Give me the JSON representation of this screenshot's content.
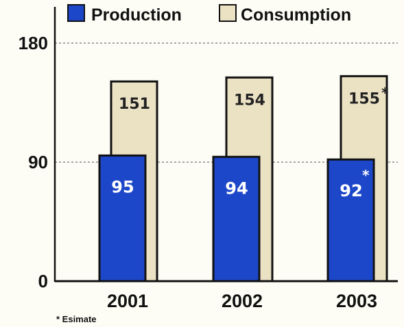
{
  "colors": {
    "production": "#1d47c9",
    "consumption": "#ebe2c4",
    "outline": "#111111",
    "grid": "#888888"
  },
  "legend": {
    "production": "Production",
    "consumption": "Consumption"
  },
  "footnote": "* Esimate",
  "chart_data": {
    "type": "bar",
    "categories": [
      "2001",
      "2002",
      "2003"
    ],
    "series": [
      {
        "name": "Production",
        "values": [
          95,
          94,
          92
        ],
        "labels": [
          "95",
          "94",
          "92"
        ],
        "estimate": [
          false,
          false,
          true
        ]
      },
      {
        "name": "Consumption",
        "values": [
          151,
          154,
          155
        ],
        "labels": [
          "151",
          "154",
          "155"
        ],
        "estimate": [
          false,
          false,
          true
        ]
      }
    ],
    "yticks": [
      0,
      90,
      180
    ],
    "ylim": [
      0,
      210
    ],
    "grid": "dotted lines at 90 and 180",
    "legend_position": "top",
    "title": "",
    "xlabel": "",
    "ylabel": ""
  }
}
